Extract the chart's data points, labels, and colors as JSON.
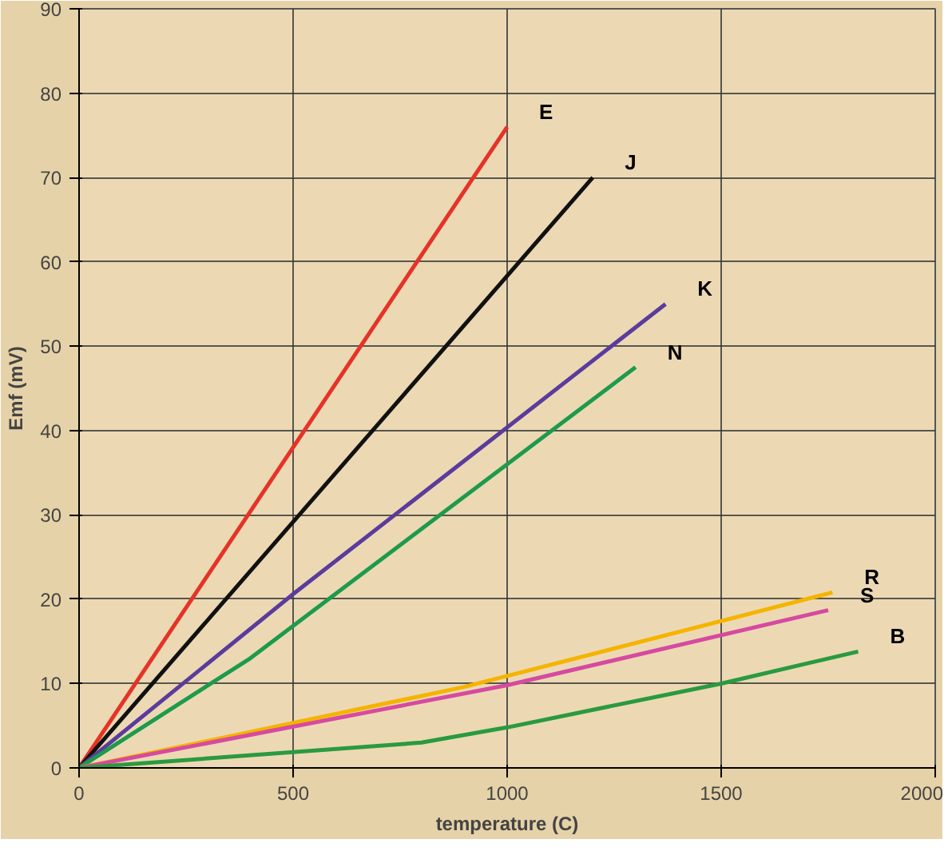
{
  "chart_data": {
    "type": "line",
    "xlabel": "temperature (C)",
    "ylabel": "Emf (mV)",
    "xlim": [
      0,
      2000
    ],
    "ylim": [
      0,
      90
    ],
    "xticks": [
      0,
      500,
      1000,
      1500,
      2000
    ],
    "yticks": [
      0,
      10,
      20,
      30,
      40,
      50,
      60,
      70,
      80,
      90
    ],
    "grid": true,
    "marker": "none",
    "line_style": "solid",
    "series": [
      {
        "name": "E",
        "color": "#e53327",
        "x": [
          0,
          1000
        ],
        "values": [
          0,
          76
        ]
      },
      {
        "name": "J",
        "color": "#111111",
        "x": [
          0,
          1200
        ],
        "values": [
          0,
          70
        ]
      },
      {
        "name": "K",
        "color": "#5b3b9c",
        "x": [
          0,
          500,
          1370
        ],
        "values": [
          0,
          20.6,
          55
        ]
      },
      {
        "name": "N",
        "color": "#1e9a4c",
        "x": [
          0,
          400,
          1300
        ],
        "values": [
          0,
          13,
          47.5
        ]
      },
      {
        "name": "R",
        "color": "#f5b400",
        "x": [
          0,
          900,
          1760
        ],
        "values": [
          0,
          9.6,
          20.8
        ]
      },
      {
        "name": "S",
        "color": "#d64aa0",
        "x": [
          0,
          1000,
          1750
        ],
        "values": [
          0,
          9.8,
          18.7
        ]
      },
      {
        "name": "B",
        "color": "#2a9a40",
        "x": [
          0,
          800,
          1000,
          1500,
          1820
        ],
        "values": [
          0,
          3,
          4.8,
          10,
          13.8
        ]
      }
    ]
  }
}
